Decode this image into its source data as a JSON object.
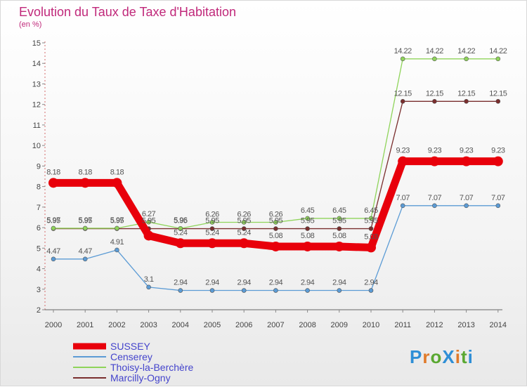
{
  "title": "Evolution du Taux de Taxe d'Habitation",
  "unit_label": "(en %)",
  "logo": "ProXiti",
  "chart_data": {
    "type": "line",
    "x": [
      2000,
      2001,
      2002,
      2003,
      2004,
      2005,
      2006,
      2007,
      2008,
      2009,
      2010,
      2011,
      2012,
      2013,
      2014
    ],
    "ylim": [
      2,
      15
    ],
    "yticks": [
      2,
      3,
      4,
      5,
      6,
      7,
      8,
      9,
      10,
      11,
      12,
      13,
      14,
      15
    ],
    "grid": false,
    "legend_position": "bottom-left",
    "series": [
      {
        "name": "SUSSEY",
        "color": "#e8000b",
        "values": [
          8.18,
          8.18,
          8.18,
          5.61,
          5.24,
          5.24,
          5.24,
          5.08,
          5.08,
          5.08,
          5.03,
          9.23,
          9.23,
          9.23,
          9.23
        ],
        "labels": [
          "8.18",
          "8.18",
          "8.18",
          "",
          "5.24",
          "5.24",
          "5.24",
          "5.08",
          "5.08",
          "5.08",
          "5.03",
          "9.23",
          "9.23",
          "9.23",
          "9.23"
        ]
      },
      {
        "name": "Censerey",
        "color": "#5b9bd5",
        "values": [
          4.47,
          4.47,
          4.91,
          3.1,
          2.94,
          2.94,
          2.94,
          2.94,
          2.94,
          2.94,
          2.94,
          7.07,
          7.07,
          7.07,
          7.07
        ],
        "labels": [
          "4.47",
          "4.47",
          "4.91",
          "3.1",
          "2.94",
          "2.94",
          "2.94",
          "2.94",
          "2.94",
          "2.94",
          "2.94",
          "7.07",
          "7.07",
          "7.07",
          "7.07"
        ]
      },
      {
        "name": "Thoisy-la-Berchère",
        "color": "#8fd45a",
        "values": [
          5.97,
          5.97,
          5.97,
          6.27,
          5.96,
          6.26,
          6.26,
          6.26,
          6.45,
          6.45,
          6.45,
          14.22,
          14.22,
          14.22,
          14.22
        ],
        "labels": [
          "5.97",
          "5.97",
          "5.97",
          "6.27",
          "5.96",
          "6.26",
          "6.26",
          "6.26",
          "6.45",
          "6.45",
          "6.45",
          "14.22",
          "14.22",
          "14.22",
          "14.22"
        ]
      },
      {
        "name": "Marcilly-Ogny",
        "color": "#7a2e2e",
        "values": [
          5.95,
          5.95,
          5.95,
          5.95,
          5.95,
          5.95,
          5.95,
          5.95,
          5.95,
          5.95,
          5.95,
          12.15,
          12.15,
          12.15,
          12.15
        ],
        "labels": [
          "5.95",
          "5.95",
          "5.95",
          "5.95",
          "5.95",
          "5.95",
          "5.95",
          "5.95",
          "5.95",
          "5.95",
          "5.95",
          "12.15",
          "12.15",
          "12.15",
          "12.15"
        ]
      }
    ]
  }
}
